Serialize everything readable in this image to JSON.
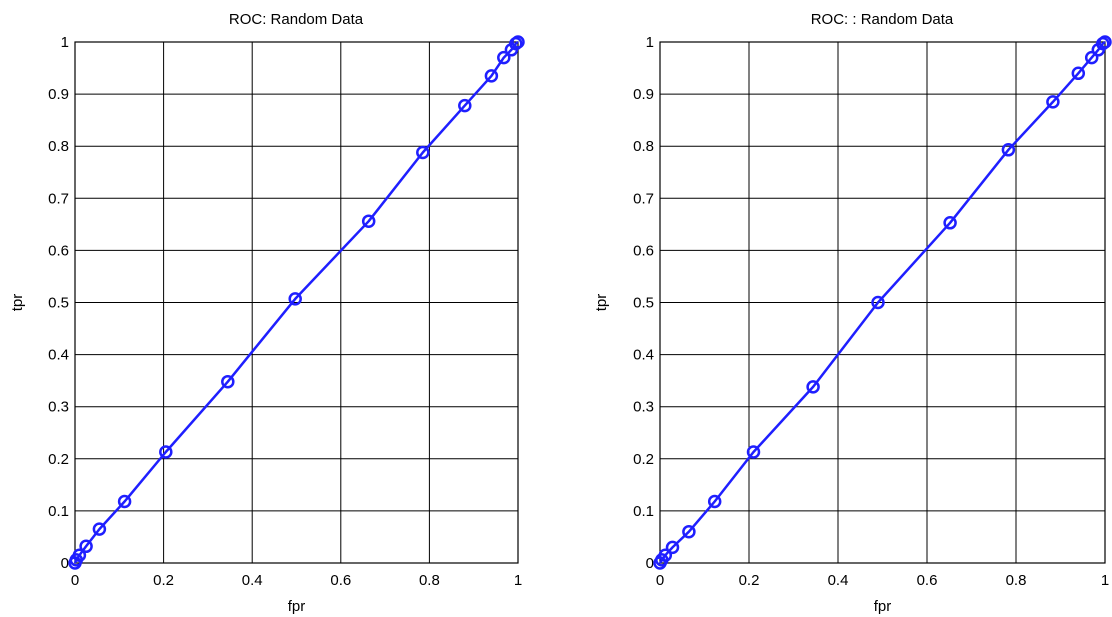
{
  "chart_data": [
    {
      "type": "line",
      "title": "ROC: Random Data",
      "xlabel": "fpr",
      "ylabel": "tpr",
      "xlim": [
        0,
        1
      ],
      "ylim": [
        0,
        1
      ],
      "xticks": [
        "0",
        "0.2",
        "0.4",
        "0.6",
        "0.8",
        "1"
      ],
      "yticks": [
        "0",
        "0.1",
        "0.2",
        "0.3",
        "0.4",
        "0.5",
        "0.6",
        "0.7",
        "0.8",
        "0.9",
        "1"
      ],
      "grid": true,
      "marker": "circle",
      "line_color": "#1f1fff",
      "series": [
        {
          "x": [
            0,
            0.003,
            0.01,
            0.025,
            0.055,
            0.112,
            0.205,
            0.345,
            0.497,
            0.663,
            0.785,
            0.88,
            0.94,
            0.968,
            0.985,
            0.995,
            1.0
          ],
          "y": [
            0,
            0.006,
            0.015,
            0.032,
            0.065,
            0.118,
            0.213,
            0.348,
            0.507,
            0.656,
            0.788,
            0.878,
            0.935,
            0.97,
            0.985,
            0.997,
            1.0
          ]
        }
      ]
    },
    {
      "type": "line",
      "title": "ROC: : Random Data",
      "xlabel": "fpr",
      "ylabel": "tpr",
      "xlim": [
        0,
        1
      ],
      "ylim": [
        0,
        1
      ],
      "xticks": [
        "0",
        "0.2",
        "0.4",
        "0.6",
        "0.8",
        "1"
      ],
      "yticks": [
        "0",
        "0.1",
        "0.2",
        "0.3",
        "0.4",
        "0.5",
        "0.6",
        "0.7",
        "0.8",
        "0.9",
        "1"
      ],
      "grid": true,
      "marker": "circle",
      "line_color": "#1f1fff",
      "series": [
        {
          "x": [
            0,
            0.004,
            0.012,
            0.028,
            0.065,
            0.123,
            0.21,
            0.344,
            0.49,
            0.652,
            0.783,
            0.883,
            0.94,
            0.97,
            0.985,
            0.995,
            1.0
          ],
          "y": [
            0,
            0.006,
            0.015,
            0.03,
            0.06,
            0.118,
            0.213,
            0.338,
            0.5,
            0.653,
            0.793,
            0.885,
            0.94,
            0.97,
            0.985,
            0.997,
            1.0
          ]
        }
      ]
    }
  ]
}
